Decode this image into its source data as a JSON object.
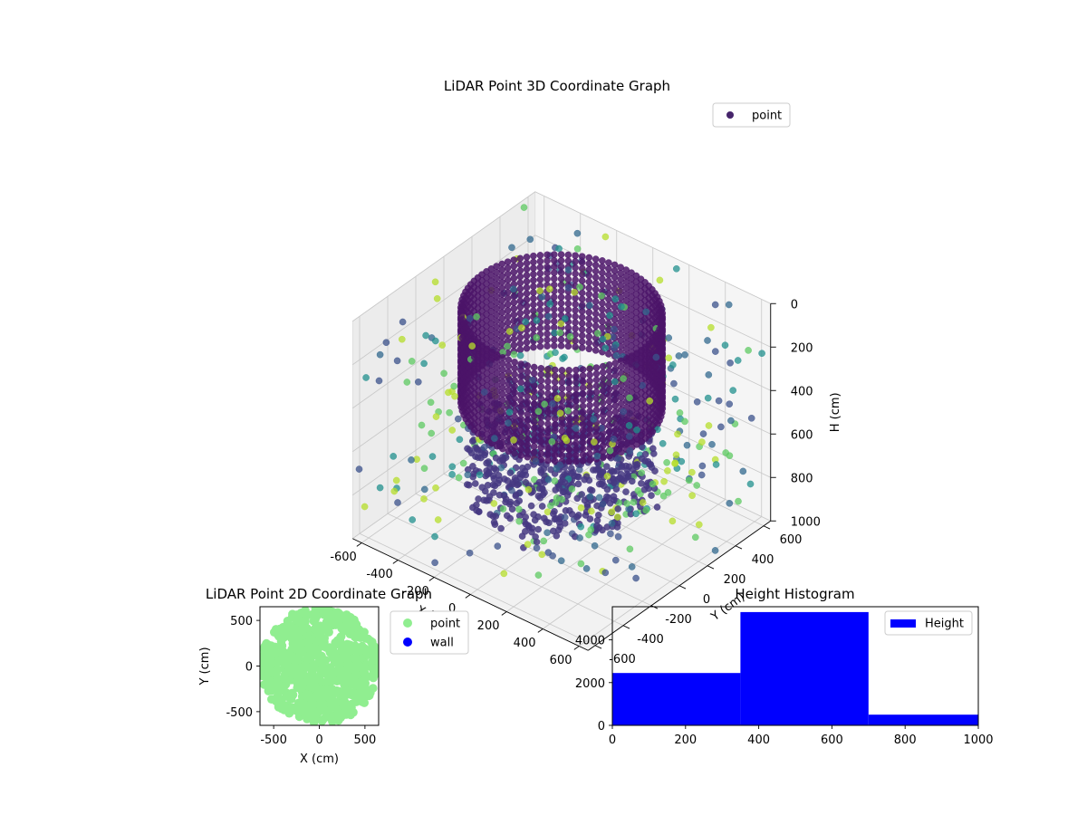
{
  "chart_data": [
    {
      "type": "scatter3d",
      "title": "LiDAR Point 3D Coordinate Graph",
      "xlabel": "X (cm)",
      "ylabel": "Y (cm)",
      "zlabel": "H (cm)",
      "xlim": [
        -650,
        650
      ],
      "ylim": [
        -650,
        650
      ],
      "zlim": [
        1000,
        0
      ],
      "z_inverted": true,
      "xticks": [
        "-600",
        "-400",
        "-200",
        "0",
        "200",
        "400",
        "600"
      ],
      "yticks": [
        "-600",
        "-400",
        "-200",
        "0",
        "200",
        "400",
        "600"
      ],
      "zticks": [
        "0",
        "200",
        "400",
        "600",
        "800",
        "1000"
      ],
      "colormap": "viridis",
      "legend": [
        {
          "label": "point",
          "color": "#46256b"
        }
      ],
      "legend_position": "top-right",
      "grid": true,
      "series": [
        {
          "name": "point",
          "structure": [
            {
              "shape": "ring",
              "radius": 440,
              "height_range": [
                0,
                420
              ],
              "color": "#4b1468"
            },
            {
              "shape": "disc",
              "radius": 420,
              "height_range": [
                520,
                820
              ],
              "color": "#453881"
            },
            {
              "shape": "scattered",
              "range": [
                -650,
                650
              ],
              "height_range": [
                0,
                1000
              ],
              "colors": [
                "#3b528b",
                "#31688e",
                "#21908d",
                "#5ec962",
                "#b5de2b"
              ]
            }
          ]
        }
      ]
    },
    {
      "type": "scatter",
      "title": "LiDAR Point 2D Coordinate Graph",
      "xlabel": "X (cm)",
      "ylabel": "Y (cm)",
      "xlim": [
        -650,
        650
      ],
      "ylim": [
        -650,
        650
      ],
      "xticks": [
        "-500",
        "0",
        "500"
      ],
      "yticks": [
        "-500",
        "0",
        "500"
      ],
      "legend": [
        {
          "label": "point",
          "color": "#90ee90"
        },
        {
          "label": "wall",
          "color": "#0000ff"
        }
      ],
      "legend_position": "outside-right",
      "series": [
        {
          "name": "point",
          "color": "#90ee90",
          "extent": "filled disc, radius ≈ 640"
        },
        {
          "name": "wall",
          "color": "#0000ff",
          "extent": "none visible"
        }
      ]
    },
    {
      "type": "bar",
      "title": "Height Histogram",
      "categories": [
        "0–350",
        "350–700",
        "700–1050"
      ],
      "bin_edges": [
        0,
        350,
        700,
        1050
      ],
      "values": [
        2450,
        5300,
        500
      ],
      "xlim": [
        0,
        1000
      ],
      "ylim": [
        0,
        5550
      ],
      "xticks": [
        "0",
        "200",
        "400",
        "600",
        "800",
        "1000"
      ],
      "yticks": [
        "0",
        "2000",
        "4000"
      ],
      "legend": [
        {
          "label": "Height",
          "color": "#0000ff"
        }
      ],
      "legend_position": "top-right",
      "color": "#0000ff"
    }
  ]
}
